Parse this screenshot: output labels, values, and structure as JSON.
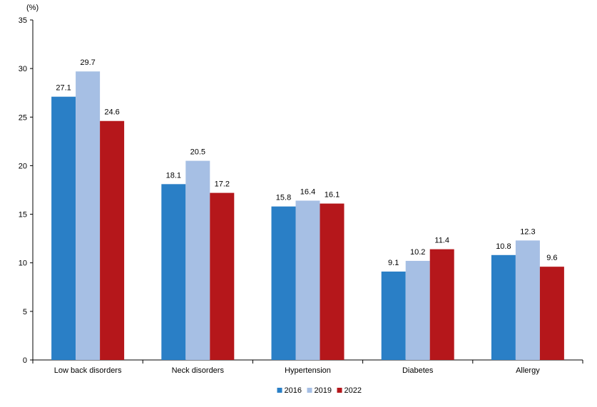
{
  "chart_data": {
    "type": "bar",
    "unit_label": "(%)",
    "categories": [
      "Low back disorders",
      "Neck disorders",
      "Hypertension",
      "Diabetes",
      "Allergy"
    ],
    "series": [
      {
        "name": "2016",
        "color": "#2a7fc6",
        "values": [
          27.1,
          18.1,
          15.8,
          9.1,
          10.8
        ]
      },
      {
        "name": "2019",
        "color": "#a6bfe4",
        "values": [
          29.7,
          20.5,
          16.4,
          10.2,
          12.3
        ]
      },
      {
        "name": "2022",
        "color": "#b5171b",
        "values": [
          24.6,
          17.2,
          16.1,
          11.4,
          9.6
        ]
      }
    ],
    "ylim": [
      0,
      35
    ],
    "yticks": [
      0,
      5,
      10,
      15,
      20,
      25,
      30,
      35
    ],
    "grid": false,
    "legend": "bottom-center",
    "data_labels": [
      "27.1",
      "29.7",
      "24.6",
      "18.1",
      "20.5",
      "17.2",
      "15.8",
      "16.4",
      "16.1",
      "9.1",
      "10.2",
      "11.4",
      "10.8",
      "12.3",
      "9.6"
    ]
  }
}
